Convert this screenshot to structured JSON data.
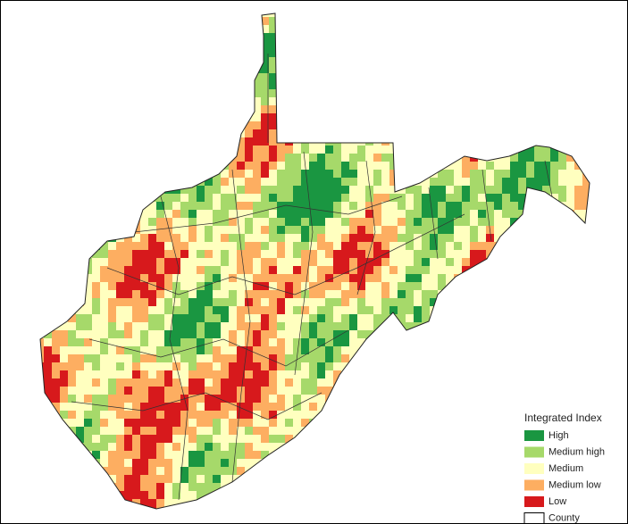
{
  "legend": {
    "title": "Integrated Index",
    "items": [
      {
        "label": "High",
        "color": "#1a9641"
      },
      {
        "label": "Medium high",
        "color": "#a6d96a"
      },
      {
        "label": "Medium",
        "color": "#ffffbf"
      },
      {
        "label": "Medium low",
        "color": "#fdae61"
      },
      {
        "label": "Low",
        "color": "#d7191c"
      },
      {
        "label": "County",
        "color": "#ffffff"
      }
    ]
  }
}
